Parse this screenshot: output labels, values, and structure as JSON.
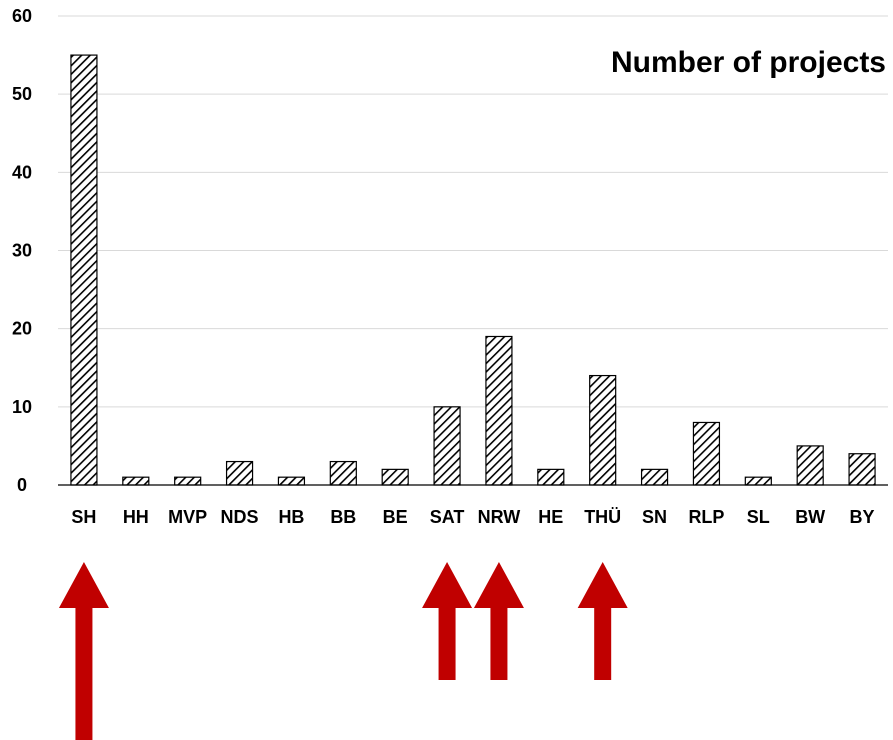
{
  "chart_data": {
    "type": "bar",
    "title": "Number of projects",
    "categories": [
      "SH",
      "HH",
      "MVP",
      "NDS",
      "HB",
      "BB",
      "BE",
      "SAT",
      "NRW",
      "HE",
      "THÜ",
      "SN",
      "RLP",
      "SL",
      "BW",
      "BY"
    ],
    "values": [
      55,
      1,
      1,
      3,
      1,
      3,
      2,
      10,
      19,
      2,
      14,
      2,
      8,
      1,
      5,
      4
    ],
    "ylim": [
      0,
      60
    ],
    "yticks": [
      0,
      10,
      20,
      30,
      40,
      50,
      60
    ],
    "grid": true,
    "bar_fill": "diagonal-hatch",
    "bar_color": "#000000",
    "legend": "none"
  },
  "annotations": {
    "arrow_color": "#c00000",
    "highlighted_categories": [
      "SH",
      "SAT",
      "NRW",
      "THÜ"
    ]
  }
}
